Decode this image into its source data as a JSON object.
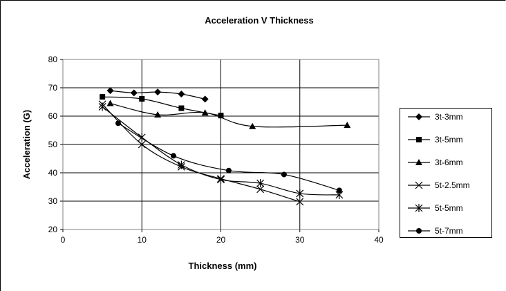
{
  "chart_data": {
    "type": "line",
    "title": "Acceleration V Thickness",
    "xlabel": "Thickness (mm)",
    "ylabel": "Acceleration (G)",
    "xlim": [
      0,
      40
    ],
    "ylim": [
      20,
      80
    ],
    "x_ticks": [
      0,
      10,
      20,
      30,
      40
    ],
    "y_ticks": [
      20,
      30,
      40,
      50,
      60,
      70,
      80
    ],
    "grid": "horizontal and vertical major gridlines",
    "legend_position": "right",
    "smoothed": true,
    "series": [
      {
        "name": "3t-3mm",
        "marker": "diamond",
        "x": [
          6,
          9,
          12,
          15,
          18
        ],
        "y": [
          69,
          68.2,
          68.5,
          67.8,
          66
        ]
      },
      {
        "name": "3t-5mm",
        "marker": "square",
        "x": [
          5,
          10,
          15,
          20
        ],
        "y": [
          66.8,
          66.1,
          62.8,
          60.2
        ]
      },
      {
        "name": "3t-6mm",
        "marker": "triangle",
        "x": [
          6,
          12,
          18,
          24,
          36
        ],
        "y": [
          64.5,
          60.5,
          61.2,
          56.4,
          56.8
        ]
      },
      {
        "name": "5t-2.5mm",
        "marker": "x",
        "x": [
          5,
          10,
          15,
          20,
          25,
          30
        ],
        "y": [
          64.2,
          50,
          42.1,
          37.9,
          34.2,
          29.8
        ]
      },
      {
        "name": "5t-5mm",
        "marker": "star",
        "x": [
          5,
          10,
          15,
          20,
          25,
          30,
          35
        ],
        "y": [
          63.3,
          52.5,
          42.8,
          37.6,
          36.3,
          32.7,
          32.2
        ]
      },
      {
        "name": "5t-7mm",
        "marker": "circle",
        "x": [
          7,
          14,
          21,
          28,
          35
        ],
        "y": [
          57.5,
          46,
          40.8,
          39.4,
          33.8
        ]
      }
    ]
  }
}
